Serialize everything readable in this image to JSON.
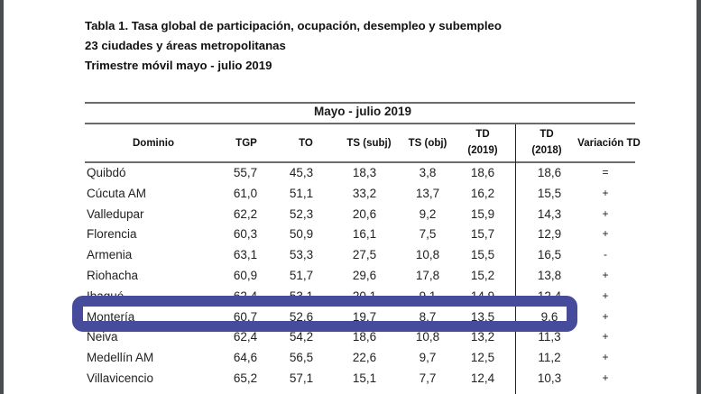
{
  "document": {
    "title_line1": "Tabla 1. Tasa global de participación, ocupación, desempleo y subempleo",
    "title_line2": "23 ciudades y áreas metropolitanas",
    "title_line3": "Trimestre móvil mayo - julio 2019"
  },
  "table": {
    "period_header": "Mayo - julio 2019",
    "headers": {
      "dominio": "Dominio",
      "tgp": "TGP",
      "to": "TO",
      "ts_subj": "TS (subj)",
      "ts_obj": "TS (obj)",
      "td_2019_a": "TD",
      "td_2019_b": "(2019)",
      "td_2018_a": "TD",
      "td_2018_b": "(2018)",
      "variacion": "Variación TD"
    },
    "rows": [
      {
        "dominio": "Quibdó",
        "tgp": "55,7",
        "to": "45,3",
        "ts_subj": "18,3",
        "ts_obj": "3,8",
        "td_2019": "18,6",
        "td_2018": "18,6",
        "variacion": "="
      },
      {
        "dominio": "Cúcuta AM",
        "tgp": "61,0",
        "to": "51,1",
        "ts_subj": "33,2",
        "ts_obj": "13,7",
        "td_2019": "16,2",
        "td_2018": "15,5",
        "variacion": "+"
      },
      {
        "dominio": "Valledupar",
        "tgp": "62,2",
        "to": "52,3",
        "ts_subj": "20,6",
        "ts_obj": "9,2",
        "td_2019": "15,9",
        "td_2018": "14,3",
        "variacion": "+"
      },
      {
        "dominio": "Florencia",
        "tgp": "60,3",
        "to": "50,9",
        "ts_subj": "16,1",
        "ts_obj": "7,5",
        "td_2019": "15,7",
        "td_2018": "12,9",
        "variacion": "+"
      },
      {
        "dominio": "Armenia",
        "tgp": "63,1",
        "to": "53,3",
        "ts_subj": "27,5",
        "ts_obj": "10,8",
        "td_2019": "15,5",
        "td_2018": "16,5",
        "variacion": "-"
      },
      {
        "dominio": "Riohacha",
        "tgp": "60,9",
        "to": "51,7",
        "ts_subj": "29,6",
        "ts_obj": "17,8",
        "td_2019": "15,2",
        "td_2018": "13,8",
        "variacion": "+"
      },
      {
        "dominio": "Ibagué",
        "tgp": "62,4",
        "to": "53,1",
        "ts_subj": "20,1",
        "ts_obj": "9,1",
        "td_2019": "14,9",
        "td_2018": "12,4",
        "variacion": "+"
      },
      {
        "dominio": "Montería",
        "tgp": "60,7",
        "to": "52,6",
        "ts_subj": "19,7",
        "ts_obj": "8,7",
        "td_2019": "13,5",
        "td_2018": "9,6",
        "variacion": "+"
      },
      {
        "dominio": "Neiva",
        "tgp": "62,4",
        "to": "54,2",
        "ts_subj": "18,6",
        "ts_obj": "10,8",
        "td_2019": "13,2",
        "td_2018": "11,3",
        "variacion": "+"
      },
      {
        "dominio": "Medellín AM",
        "tgp": "64,6",
        "to": "56,5",
        "ts_subj": "22,6",
        "ts_obj": "9,7",
        "td_2019": "12,5",
        "td_2018": "11,2",
        "variacion": "+"
      },
      {
        "dominio": "Villavicencio",
        "tgp": "65,2",
        "to": "57,1",
        "ts_subj": "15,1",
        "ts_obj": "7,7",
        "td_2019": "12,4",
        "td_2018": "10,3",
        "variacion": "+"
      }
    ]
  },
  "annotation": {
    "highlighted_row": "Montería",
    "color": "#474b9b"
  }
}
